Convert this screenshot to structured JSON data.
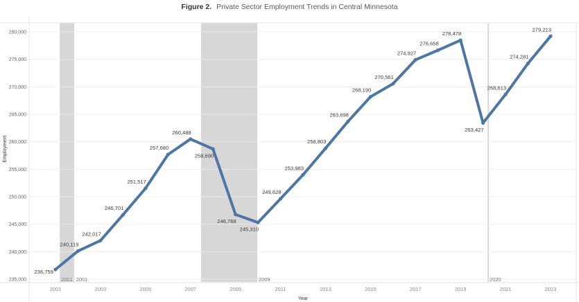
{
  "chart_data": {
    "type": "line",
    "title_prefix": "Figure 2.",
    "title": "Private Sector Employment Trends in Central Minnesota",
    "xlabel": "Year",
    "ylabel": "Employment",
    "xlim": [
      1999.83,
      2024.14
    ],
    "ylim": [
      234370,
      281640
    ],
    "grid": "horizontal",
    "legend": "none",
    "line_color": "#4e76a4",
    "shade_color": "#d7d7d7",
    "x": [
      2001,
      2002,
      2003,
      2004,
      2005,
      2006,
      2007,
      2008,
      2009,
      2010,
      2011,
      2012,
      2013,
      2014,
      2015,
      2016,
      2017,
      2018,
      2019,
      2020,
      2021,
      2022,
      2023
    ],
    "series": [
      {
        "name": "Employment",
        "values": [
          236759,
          240119,
          242017,
          246701,
          251517,
          257680,
          260488,
          258690,
          246768,
          245310,
          249628,
          253983,
          258803,
          263698,
          268190,
          270561,
          274927,
          276658,
          278478,
          263427,
          268613,
          274281,
          279213
        ]
      }
    ],
    "data_labels": [
      "236,759",
      "240,119",
      "242,017",
      "246,701",
      "251,517",
      "257,680",
      "260,488",
      "258,690",
      "246,768",
      "245,310",
      "249,628",
      "253,983",
      "258,803",
      "263,698",
      "268,190",
      "270,561",
      "274,927",
      "276,658",
      "278,478",
      "263,427",
      "268,613",
      "274,281",
      "279,213"
    ],
    "xticks": [
      {
        "value": 2001,
        "label": "2001"
      },
      {
        "value": 2003,
        "label": "2003"
      },
      {
        "value": 2005,
        "label": "2005"
      },
      {
        "value": 2007,
        "label": "2007"
      },
      {
        "value": 2009,
        "label": "2009"
      },
      {
        "value": 2011,
        "label": "2011"
      },
      {
        "value": 2013,
        "label": "2013"
      },
      {
        "value": 2015,
        "label": "2015"
      },
      {
        "value": 2017,
        "label": "2017"
      },
      {
        "value": 2019,
        "label": "2019"
      },
      {
        "value": 2021,
        "label": "2021"
      },
      {
        "value": 2023,
        "label": "2023"
      }
    ],
    "yticks": [
      {
        "value": 235000,
        "label": "235,000"
      },
      {
        "value": 240000,
        "label": "240,000"
      },
      {
        "value": 245000,
        "label": "245,000"
      },
      {
        "value": 250000,
        "label": "250,000"
      },
      {
        "value": 255000,
        "label": "255,000"
      },
      {
        "value": 260000,
        "label": "260,000"
      },
      {
        "value": 265000,
        "label": "265,000"
      },
      {
        "value": 270000,
        "label": "270,000"
      },
      {
        "value": 275000,
        "label": "275,000"
      },
      {
        "value": 280000,
        "label": "280,000"
      }
    ],
    "shaded_periods": [
      {
        "start": 2001.19,
        "end": 2001.83
      },
      {
        "start": 2007.47,
        "end": 2009.97
      },
      {
        "start": 2020.2,
        "end": 2020.26
      }
    ],
    "annotations": [
      {
        "text": "2001",
        "x": 2001.25
      },
      {
        "text": "2001",
        "x": 2001.92
      },
      {
        "text": "2009",
        "x": 2010.03
      },
      {
        "text": "2020",
        "x": 2020.29
      }
    ]
  }
}
